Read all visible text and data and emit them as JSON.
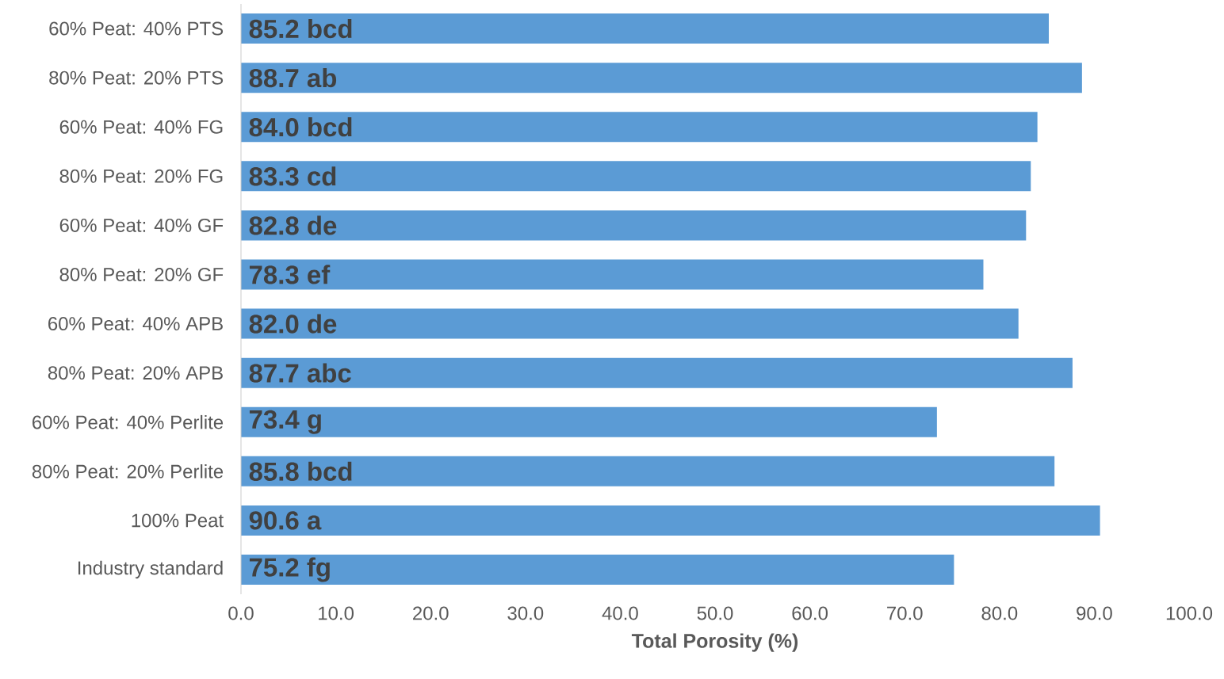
{
  "chart_data": {
    "type": "bar",
    "orientation": "horizontal",
    "xlabel": "Total Porosity (%)",
    "categories": [
      "60% Peat: 40% PTS",
      "80% Peat: 20% PTS",
      "60% Peat: 40% FG",
      "80% Peat: 20% FG",
      "60% Peat: 40% GF",
      "80% Peat: 20% GF",
      "60% Peat: 40% APB",
      "80% Peat: 20% APB",
      "60% Peat: 40% Perlite",
      "80% Peat: 20% Perlite",
      "100% Peat",
      "Industry standard"
    ],
    "values": [
      85.2,
      88.7,
      84.0,
      83.3,
      82.8,
      78.3,
      82.0,
      87.7,
      73.4,
      85.8,
      90.6,
      75.2
    ],
    "value_labels": [
      "85.2 bcd",
      "88.7 ab",
      "84.0 bcd",
      "83.3 cd",
      "82.8 de",
      "78.3 ef",
      "82.0 de",
      "87.7 abc",
      "73.4 g",
      "85.8 bcd",
      "90.6 a",
      "75.2 fg"
    ],
    "color": "#5b9bd5",
    "xlim": [
      0,
      100
    ],
    "xticks": [
      {
        "value": 0,
        "label": "0.0"
      },
      {
        "value": 10,
        "label": "10.0"
      },
      {
        "value": 20,
        "label": "20.0"
      },
      {
        "value": 30,
        "label": "30.0"
      },
      {
        "value": 40,
        "label": "40.0"
      },
      {
        "value": 50,
        "label": "50.0"
      },
      {
        "value": 60,
        "label": "60.0"
      },
      {
        "value": 70,
        "label": "70.0"
      },
      {
        "value": 80,
        "label": "80.0"
      },
      {
        "value": 90,
        "label": "90.0"
      },
      {
        "value": 100,
        "label": "100.0"
      }
    ]
  }
}
